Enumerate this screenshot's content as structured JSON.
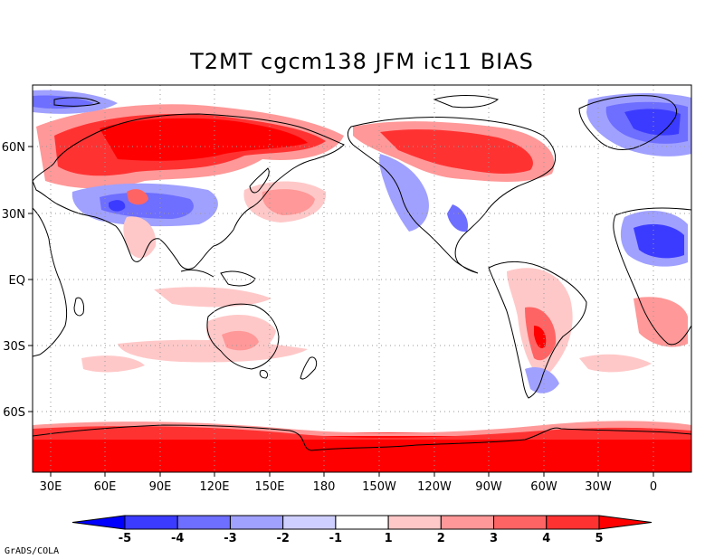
{
  "title": "T2MT  cgcm138  JFM  ic11  BIAS",
  "credit": "GrADS/COLA",
  "x_ticks": [
    "30E",
    "60E",
    "90E",
    "120E",
    "150E",
    "180",
    "150W",
    "120W",
    "90W",
    "60W",
    "30W",
    "0"
  ],
  "y_ticks": [
    "60N",
    "30N",
    "EQ",
    "30S",
    "60S"
  ],
  "colorbar": {
    "labels": [
      "-5",
      "-4",
      "-3",
      "-2",
      "-1",
      "1",
      "2",
      "3",
      "4",
      "5"
    ],
    "colors": [
      "#0000ff",
      "#3b3bff",
      "#6e6eff",
      "#a0a0ff",
      "#cfcfff",
      "#ffffff",
      "#ffc8c8",
      "#ff9898",
      "#ff6464",
      "#ff3232",
      "#ff0000"
    ]
  },
  "colors": {
    "land_outline": "#000000",
    "grid": "#9a9a9a"
  }
}
